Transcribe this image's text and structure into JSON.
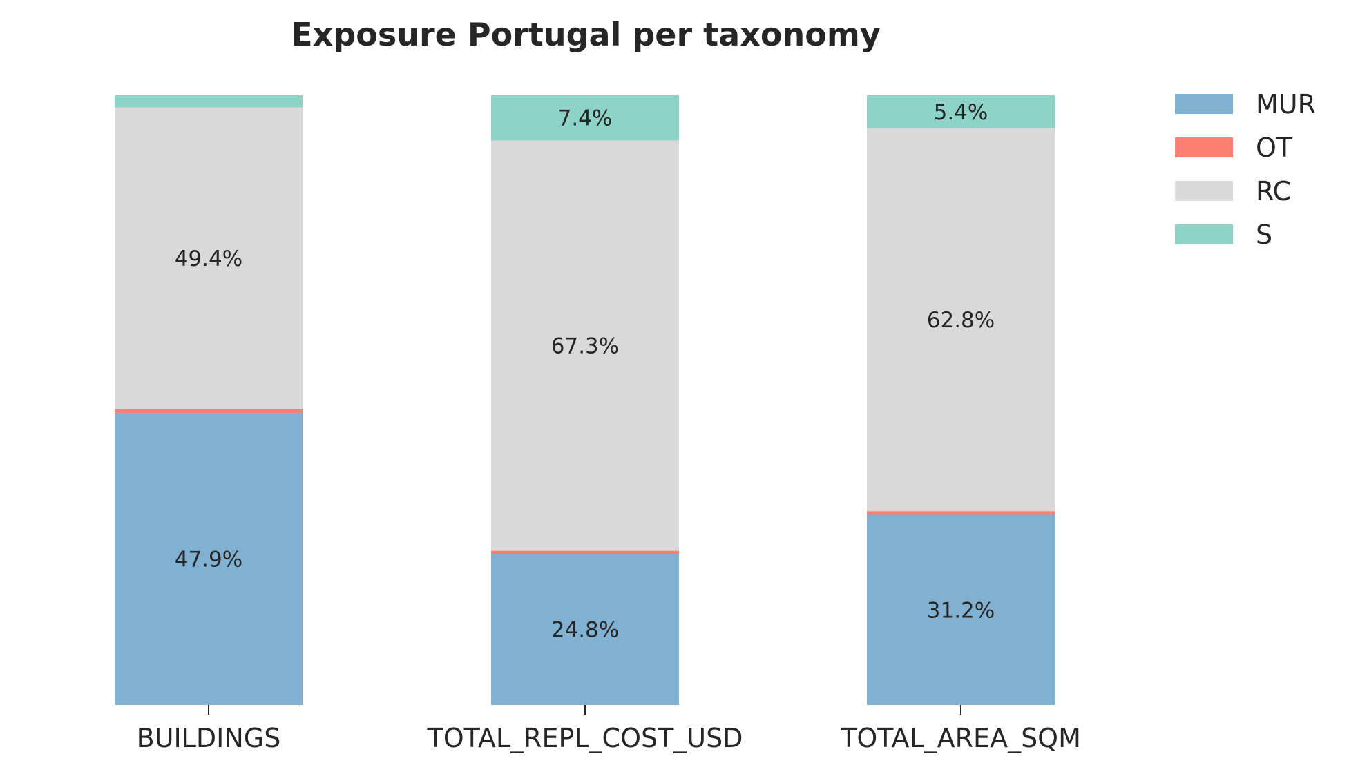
{
  "chart_data": {
    "type": "bar",
    "stacked": true,
    "title": "Exposure Portugal per taxonomy",
    "categories": [
      "BUILDINGS",
      "TOTAL_REPL_COST_USD",
      "TOTAL_AREA_SQM"
    ],
    "series": [
      {
        "name": "MUR",
        "color": "#80b1d3",
        "values": [
          47.9,
          24.8,
          31.2
        ]
      },
      {
        "name": "OT",
        "color": "#fb8072",
        "values": [
          0.7,
          0.5,
          0.6
        ]
      },
      {
        "name": "RC",
        "color": "#d9d9d9",
        "values": [
          49.4,
          67.3,
          62.8
        ]
      },
      {
        "name": "S",
        "color": "#8dd3c7",
        "values": [
          2.0,
          7.4,
          5.4
        ]
      }
    ],
    "data_labels": [
      [
        "47.9%",
        "24.8%",
        "31.2%"
      ],
      [
        "",
        "",
        ""
      ],
      [
        "49.4%",
        "67.3%",
        "62.8%"
      ],
      [
        "",
        "7.4%",
        "5.4%"
      ]
    ],
    "ylim": [
      0,
      100
    ],
    "grid": false,
    "legend": "top-right"
  }
}
